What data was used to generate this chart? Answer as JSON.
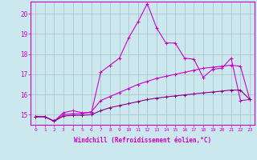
{
  "xlabel": "Windchill (Refroidissement éolien,°C)",
  "background_color": "#cce8ef",
  "line_color_bright": "#cc00cc",
  "line_color_dark": "#880088",
  "grid_color": "#aabbcc",
  "xlim": [
    -0.5,
    23.5
  ],
  "ylim": [
    14.5,
    20.6
  ],
  "yticks": [
    15,
    16,
    17,
    18,
    19,
    20
  ],
  "xticks": [
    0,
    1,
    2,
    3,
    4,
    5,
    6,
    7,
    8,
    9,
    10,
    11,
    12,
    13,
    14,
    15,
    16,
    17,
    18,
    19,
    20,
    21,
    22,
    23
  ],
  "series1": [
    14.9,
    14.9,
    14.68,
    15.1,
    15.2,
    15.1,
    15.1,
    17.1,
    17.45,
    17.8,
    18.8,
    19.6,
    20.5,
    19.3,
    18.55,
    18.55,
    17.8,
    17.75,
    16.85,
    17.25,
    17.3,
    17.8,
    15.7,
    15.75
  ],
  "series2": [
    14.9,
    14.9,
    14.68,
    15.0,
    15.05,
    15.05,
    15.15,
    15.7,
    15.9,
    16.1,
    16.3,
    16.5,
    16.65,
    16.8,
    16.9,
    17.0,
    17.1,
    17.2,
    17.3,
    17.35,
    17.4,
    17.45,
    17.4,
    15.75
  ],
  "series3": [
    14.9,
    14.9,
    14.68,
    14.93,
    14.97,
    14.97,
    15.0,
    15.2,
    15.35,
    15.45,
    15.55,
    15.65,
    15.75,
    15.82,
    15.88,
    15.93,
    15.98,
    16.03,
    16.08,
    16.12,
    16.17,
    16.22,
    16.22,
    15.75
  ]
}
